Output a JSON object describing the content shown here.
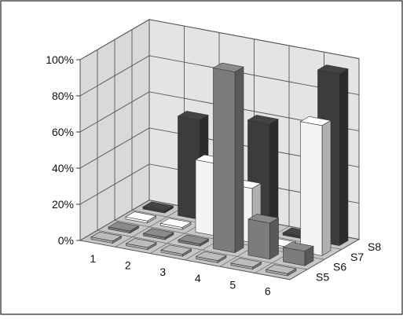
{
  "chart_data": {
    "type": "bar",
    "subtype": "3d-column",
    "x_categories": [
      "1",
      "2",
      "3",
      "4",
      "5",
      "6"
    ],
    "series": [
      {
        "label": "S5",
        "values": [
          0,
          0,
          0,
          0,
          0,
          0
        ],
        "color": "#a8a8a8"
      },
      {
        "label": "S6",
        "values": [
          0,
          0,
          0,
          100,
          20,
          8
        ],
        "color": "#7c7c7c"
      },
      {
        "label": "S7",
        "values": [
          0,
          0,
          40,
          30,
          0,
          72
        ],
        "color": "#f4f4f4"
      },
      {
        "label": "S8",
        "values": [
          0,
          55,
          25,
          60,
          0,
          95
        ],
        "color": "#3c3c3c"
      }
    ],
    "y_ticks": [
      "0%",
      "20%",
      "40%",
      "60%",
      "80%",
      "100%"
    ],
    "ylim": [
      0,
      100
    ],
    "grid": true,
    "legend": "none"
  }
}
